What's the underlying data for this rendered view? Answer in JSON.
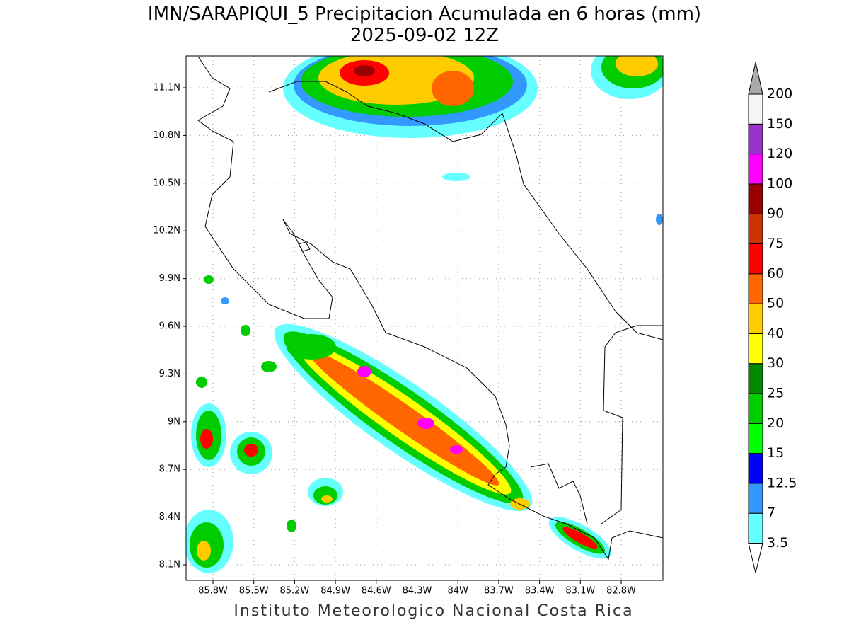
{
  "header": {
    "title": "IMN/SARAPIQUI_5 Precipitacion Acumulada en 6 horas (mm)",
    "subtitle": "2025-09-02 12Z"
  },
  "map": {
    "lat_labels": [
      "11.1N",
      "10.8N",
      "10.5N",
      "10.2N",
      "9.9N",
      "9.6N",
      "9.3N",
      "9N",
      "8.7N",
      "8.4N",
      "8.1N"
    ],
    "lon_labels": [
      "85.8W",
      "85.5W",
      "85.2W",
      "84.9W",
      "84.6W",
      "84.3W",
      "84W",
      "83.7W",
      "83.4W",
      "83.1W",
      "82.8W"
    ]
  },
  "colorbar": {
    "levels": [
      3.5,
      7,
      12.5,
      15,
      20,
      25,
      30,
      40,
      50,
      60,
      75,
      90,
      100,
      120,
      150,
      200
    ],
    "colors": [
      "#66ffff",
      "#3399ff",
      "#0000ff",
      "#00ff00",
      "#00cc00",
      "#008800",
      "#ffff00",
      "#ffcc00",
      "#ff6600",
      "#ff0000",
      "#cc3300",
      "#990000",
      "#ff00ff",
      "#9933cc",
      "#f5f5f5"
    ],
    "below_color": "#ffffff",
    "above_color": "#aaaaaa"
  },
  "footer": "Instituto Meteorologico Nacional Costa Rica"
}
